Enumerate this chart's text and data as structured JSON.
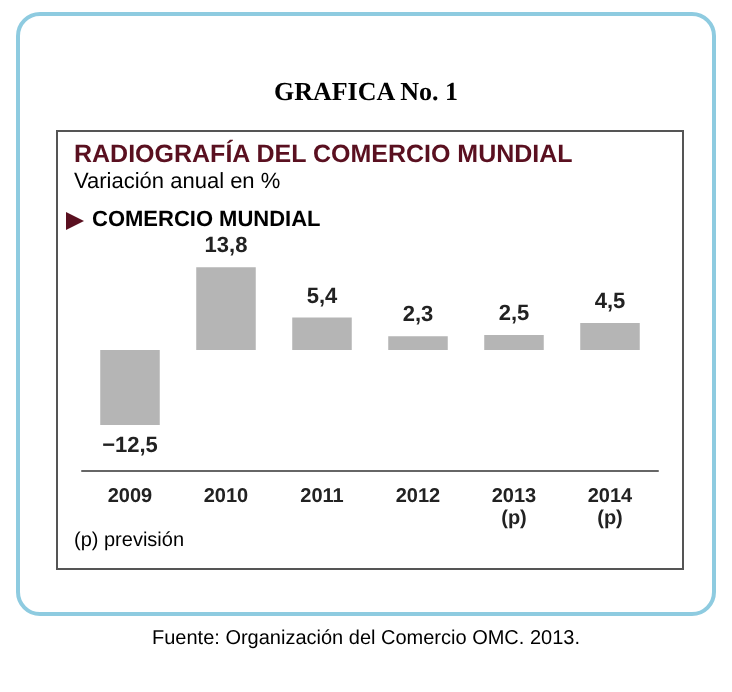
{
  "chart_data": {
    "type": "bar",
    "title": "GRAFICA No. 1",
    "subtitle": "RADIOGRAFÍA DEL COMERCIO MUNDIAL",
    "ylabel": "Variación anual en %",
    "categories": [
      "2009",
      "2010",
      "2011",
      "2012",
      "2013\n(p)",
      "2014\n(p)"
    ],
    "values": [
      -12.5,
      13.8,
      5.4,
      2.3,
      2.5,
      4.5
    ],
    "value_labels": [
      "−12,5",
      "13,8",
      "5,4",
      "2,3",
      "2,5",
      "4,5"
    ],
    "color": "#b5b5b5",
    "annotations": [
      "COMERCIO MUNDIAL",
      "(p)  previsión",
      "Fuente: Organización del Comercio OMC. 2013."
    ]
  }
}
